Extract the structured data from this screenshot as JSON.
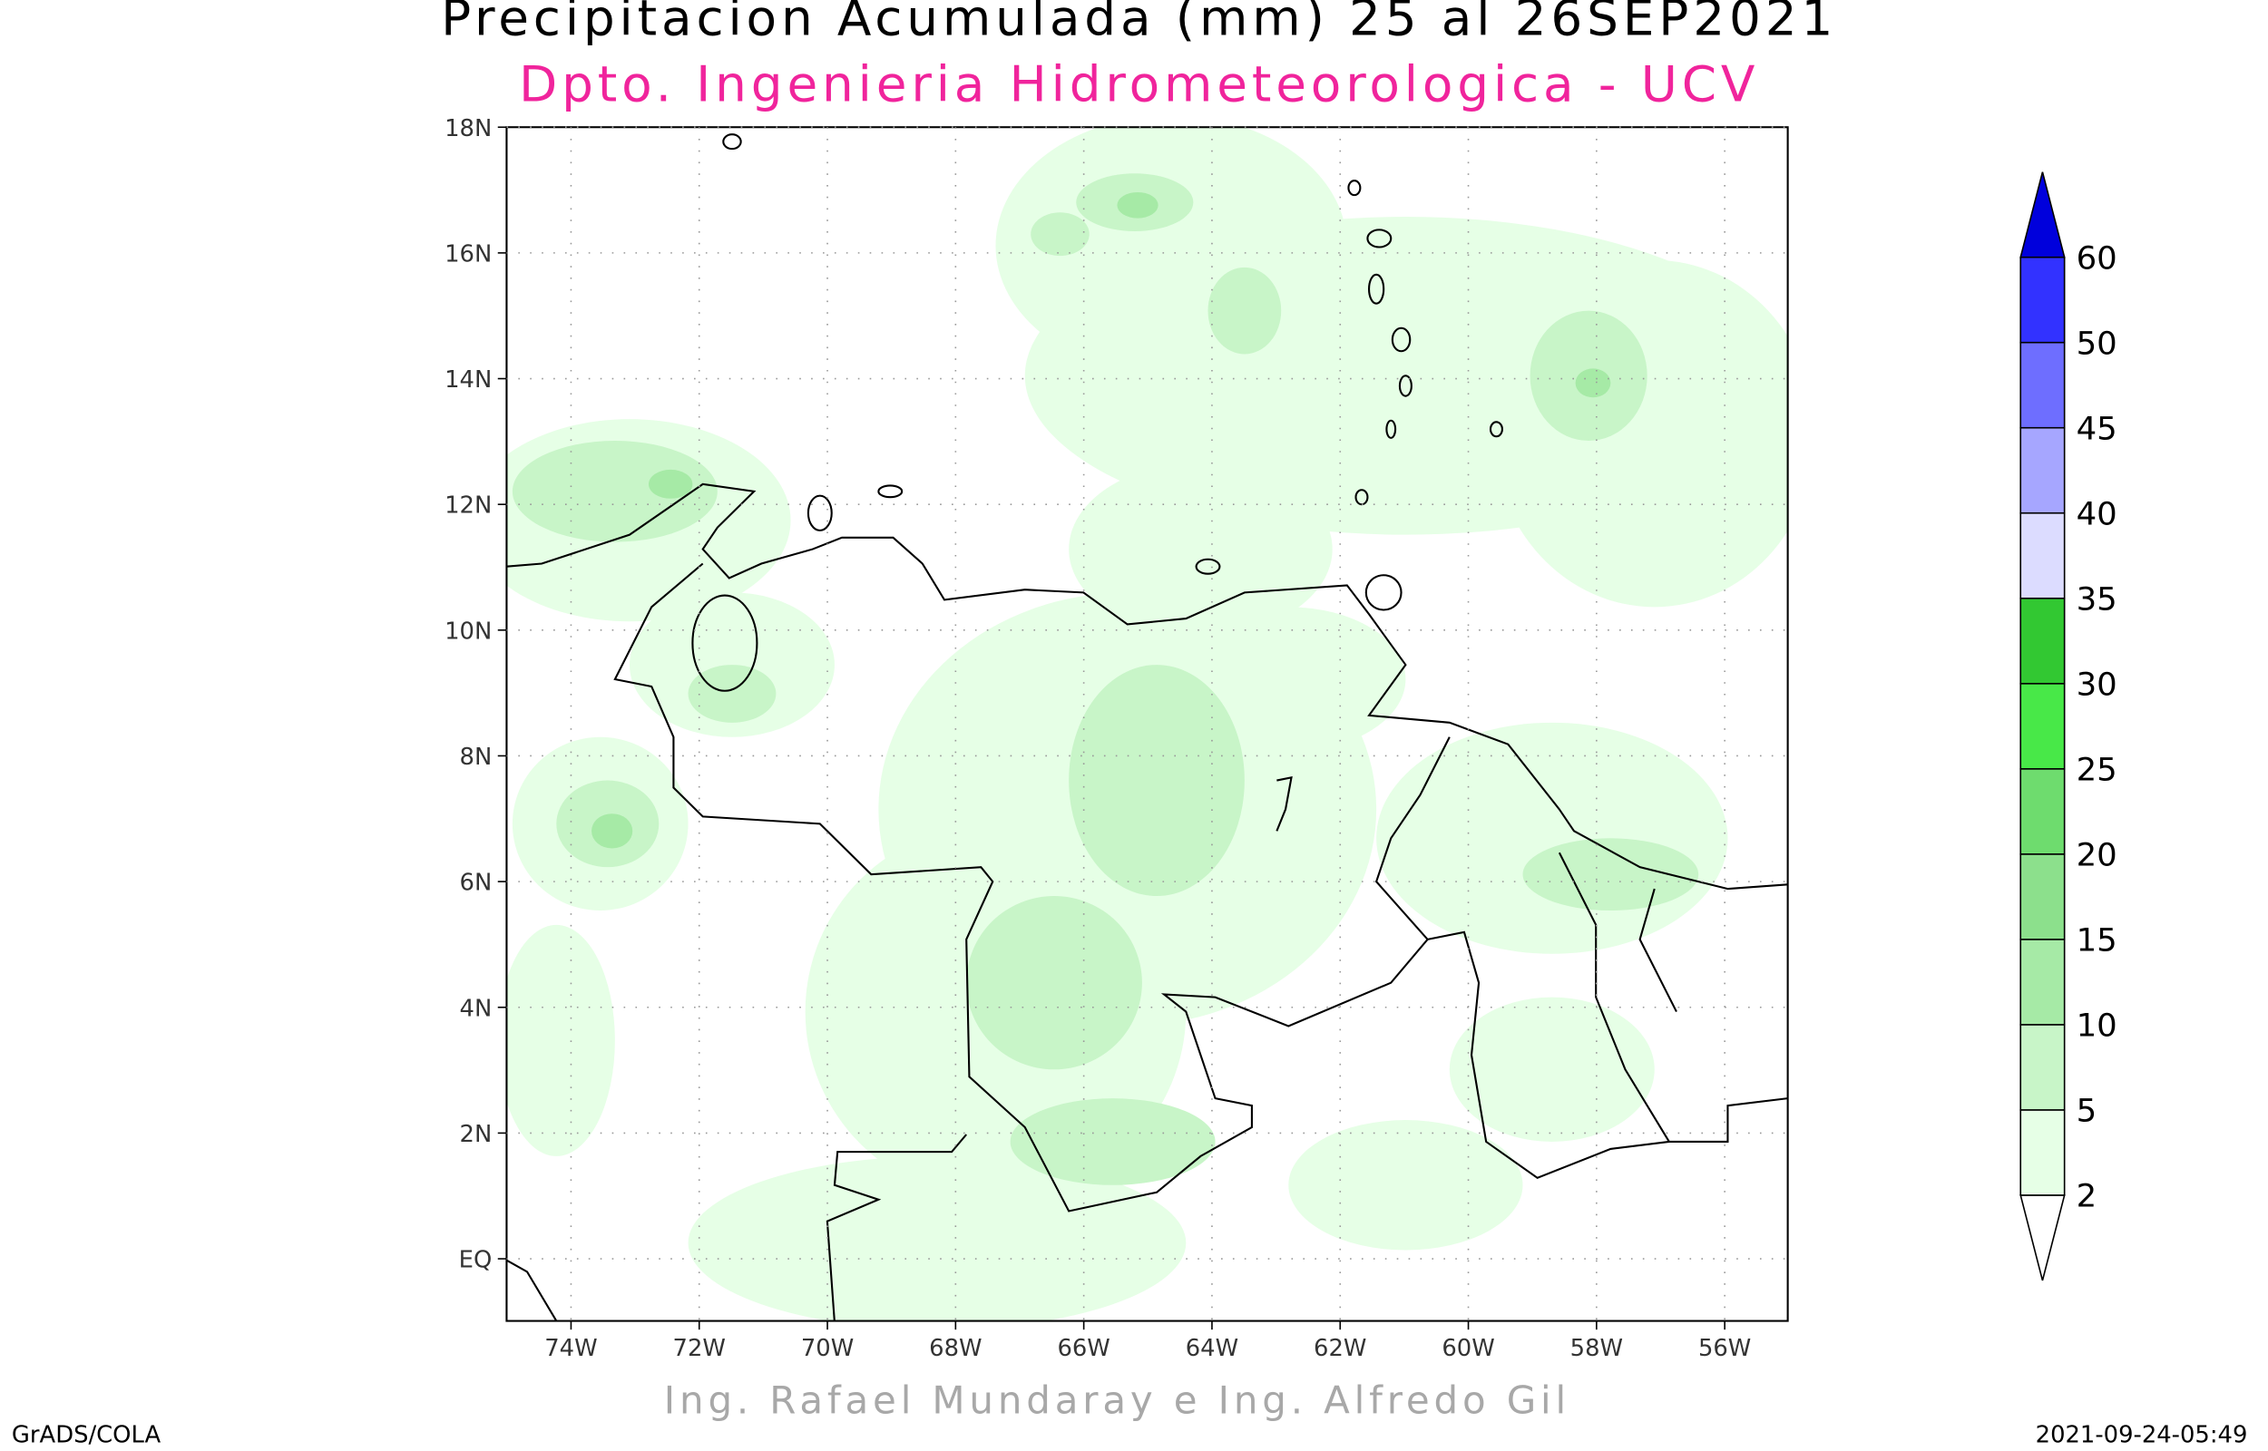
{
  "header": {
    "title": "Precipitacion Acumulada (mm) 25 al 26SEP2021",
    "subtitle": "Dpto. Ingenieria Hidrometeorologica - UCV"
  },
  "map": {
    "lat_ticks": [
      "18N",
      "16N",
      "14N",
      "12N",
      "10N",
      "8N",
      "6N",
      "4N",
      "2N",
      "EQ"
    ],
    "lon_ticks": [
      "74W",
      "72W",
      "70W",
      "68W",
      "66W",
      "64W",
      "62W",
      "60W",
      "58W",
      "56W"
    ]
  },
  "colorbar": {
    "levels": [
      2,
      5,
      10,
      15,
      20,
      25,
      30,
      35,
      40,
      45,
      50,
      60
    ],
    "colors": [
      "#ffffff",
      "#e6ffe6",
      "#c8f5c8",
      "#a6eaa6",
      "#8ce08c",
      "#6edc6e",
      "#48e848",
      "#32c832",
      "#dcdcff",
      "#a6a6ff",
      "#6e6eff",
      "#3232ff",
      "#0000dc"
    ]
  },
  "footer": {
    "credit": "Ing. Rafael Mundaray e Ing. Alfredo Gil",
    "software": "GrADS/COLA",
    "timestamp": "2021-09-24-05:49"
  }
}
